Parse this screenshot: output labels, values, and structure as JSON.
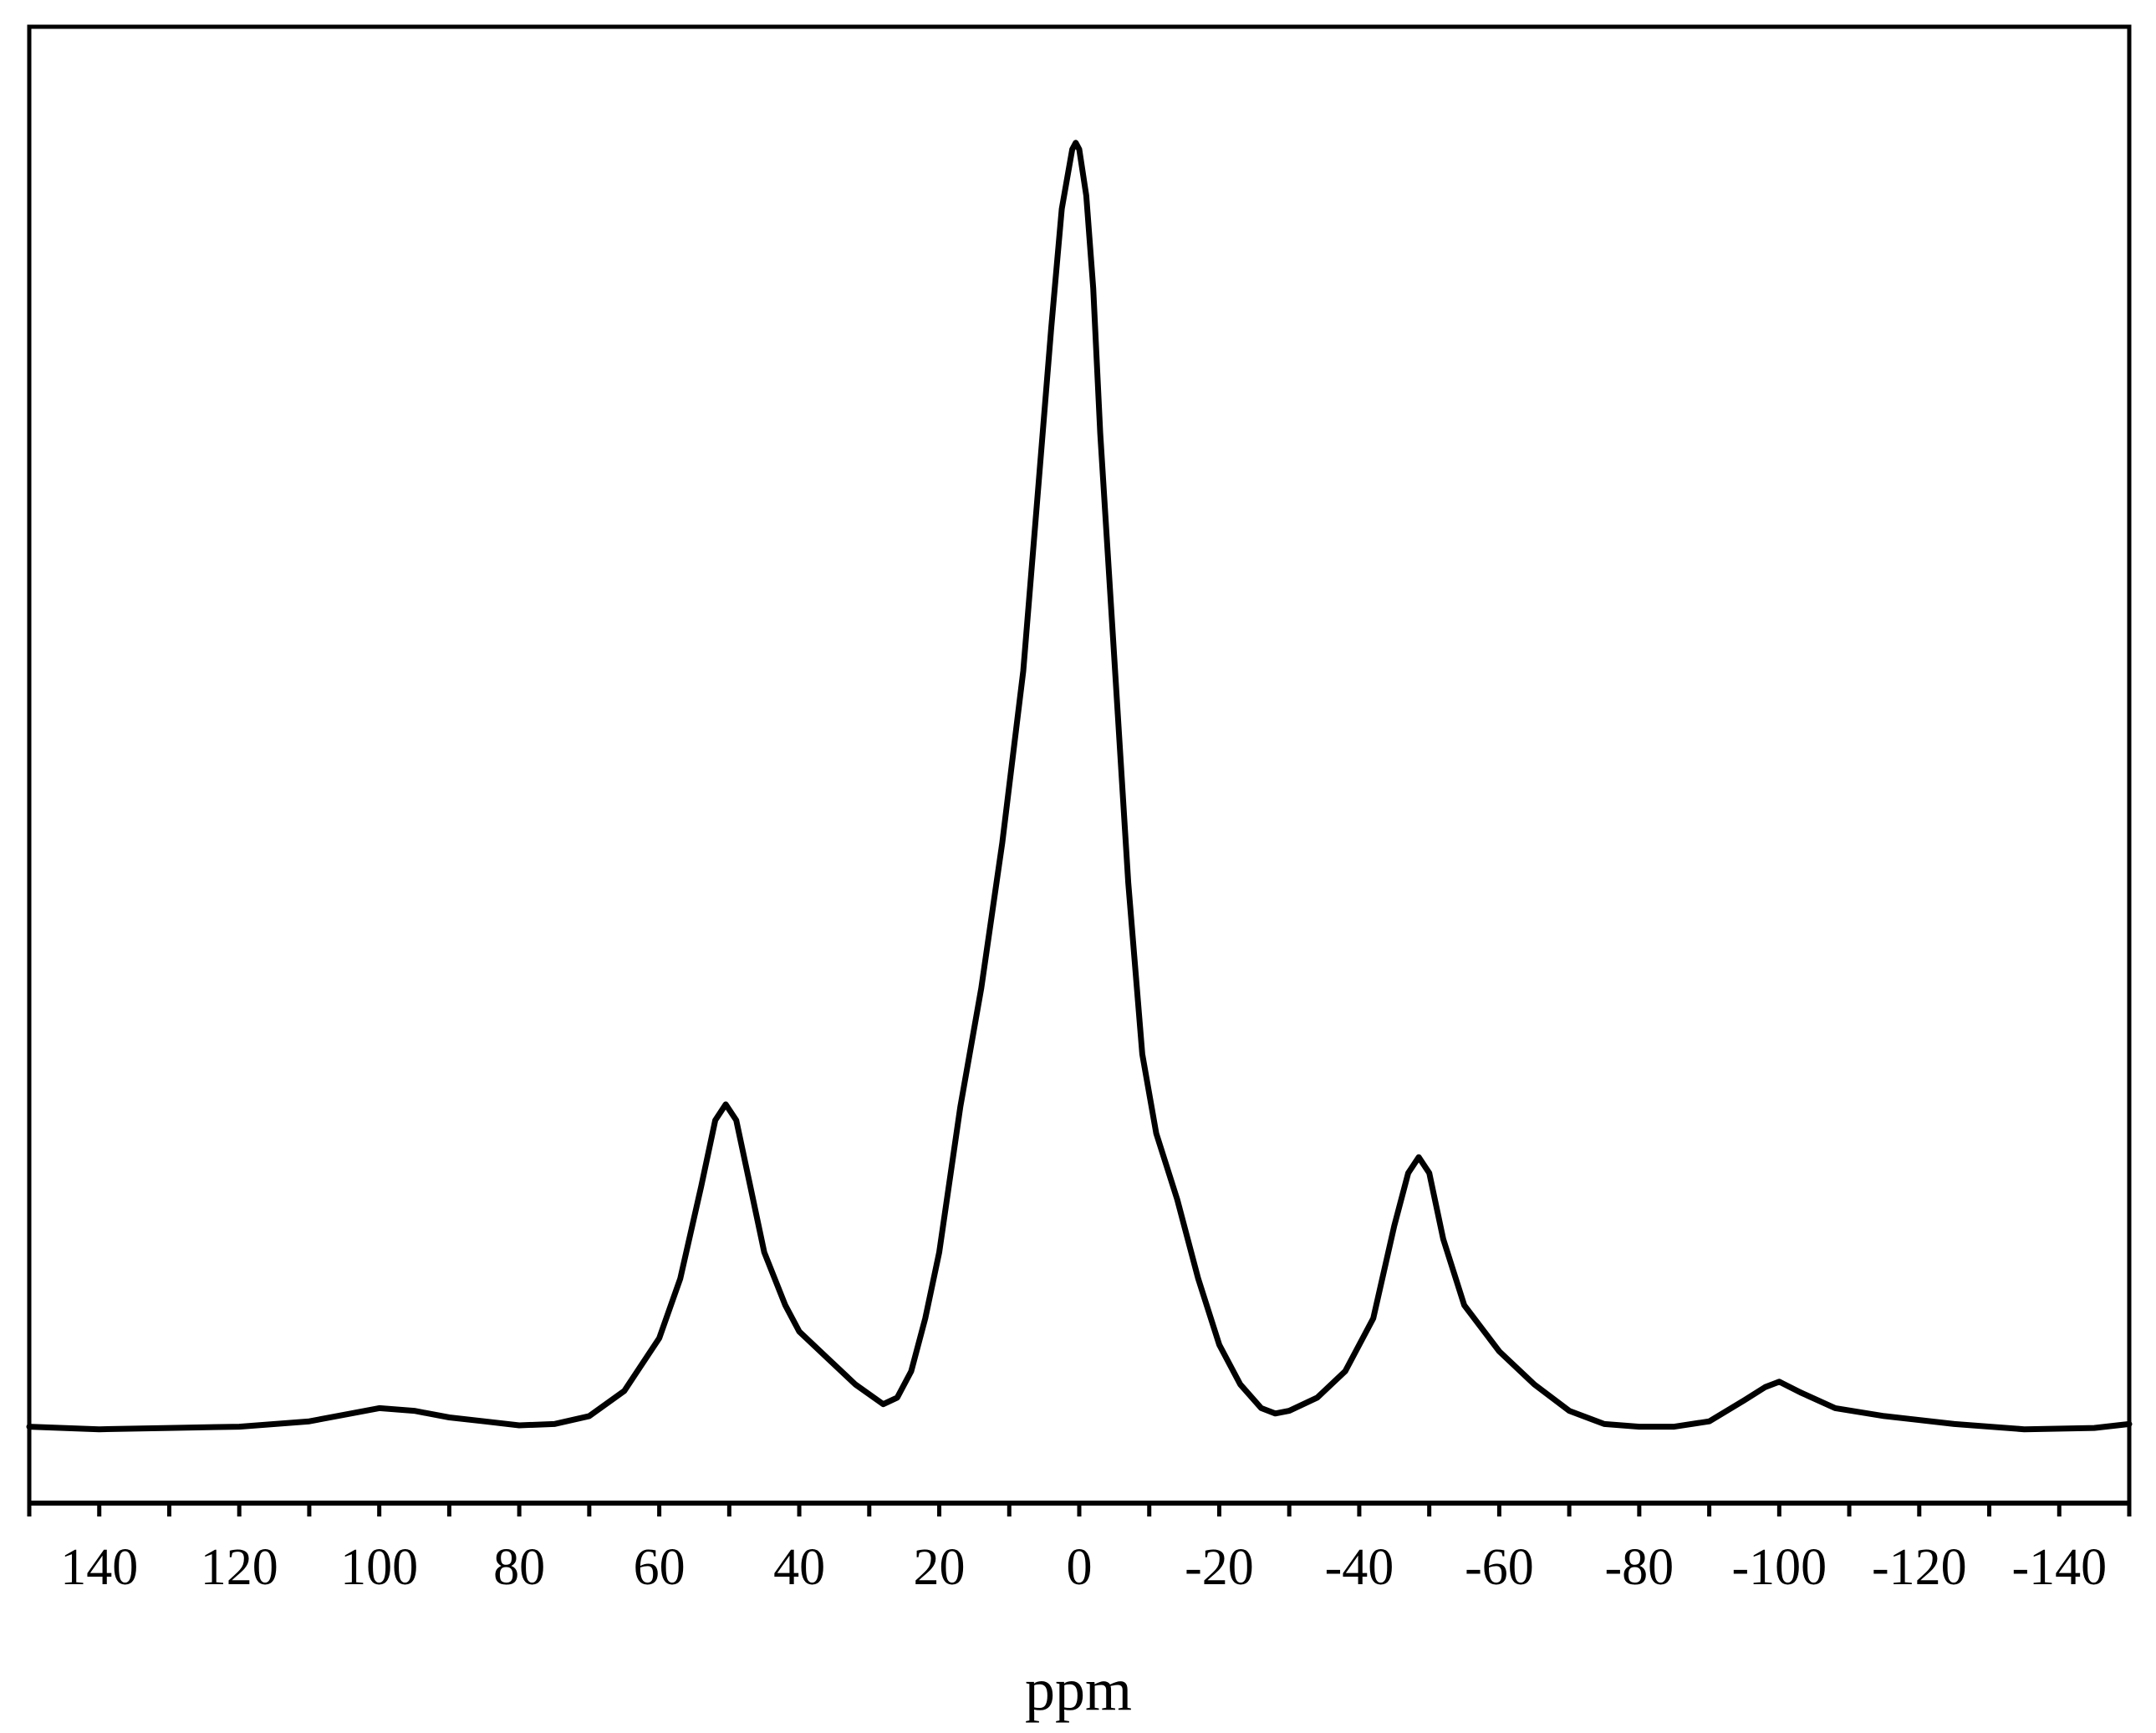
{
  "chart_data": {
    "type": "line",
    "title": "",
    "xlabel": "ppm",
    "ylabel": "",
    "xlim": [
      150,
      -150
    ],
    "x_reversed": true,
    "ylim": [
      0,
      1.0
    ],
    "grid": false,
    "legend": "none",
    "line_color": "#000000",
    "x_ticks_labeled": [
      140,
      120,
      100,
      80,
      60,
      40,
      20,
      0,
      -20,
      -40,
      -60,
      -80,
      -100,
      -120,
      -140
    ],
    "x_tick_labels": [
      "140",
      "120",
      "100",
      "80",
      "60",
      "40",
      "20",
      "0",
      "-20",
      "-40",
      "-60",
      "-80",
      "-100",
      "-120",
      "-140"
    ],
    "x_minor_tick_step": 10,
    "series": [
      {
        "x": [
          150,
          140,
          130,
          120,
          110,
          105,
          100,
          95,
          90,
          85,
          80,
          75,
          70,
          65,
          60,
          57,
          54,
          52,
          50.5,
          49,
          47,
          45,
          42,
          40,
          36,
          32,
          28,
          26,
          24,
          22,
          20,
          17,
          14,
          11,
          8,
          6,
          4,
          2.5,
          1,
          0.5,
          0,
          -1,
          -2,
          -3,
          -5,
          -7,
          -9,
          -11,
          -14,
          -17,
          -20,
          -23,
          -26,
          -28,
          -30,
          -34,
          -38,
          -42,
          -45,
          -47,
          -48.5,
          -50,
          -52,
          -55,
          -60,
          -65,
          -70,
          -75,
          -80,
          -85,
          -90,
          -95,
          -98,
          -100,
          -103,
          -108,
          -115,
          -125,
          -135,
          -145,
          -150
        ],
        "y": [
          0.018,
          0.016,
          0.017,
          0.018,
          0.022,
          0.027,
          0.032,
          0.03,
          0.025,
          0.022,
          0.019,
          0.02,
          0.026,
          0.045,
          0.085,
          0.13,
          0.2,
          0.25,
          0.262,
          0.25,
          0.2,
          0.15,
          0.11,
          0.09,
          0.07,
          0.05,
          0.035,
          0.04,
          0.06,
          0.1,
          0.15,
          0.26,
          0.35,
          0.46,
          0.59,
          0.72,
          0.85,
          0.94,
          0.985,
          0.99,
          0.985,
          0.95,
          0.88,
          0.77,
          0.6,
          0.43,
          0.3,
          0.24,
          0.19,
          0.13,
          0.08,
          0.05,
          0.032,
          0.028,
          0.03,
          0.04,
          0.06,
          0.1,
          0.17,
          0.21,
          0.222,
          0.21,
          0.16,
          0.11,
          0.075,
          0.05,
          0.03,
          0.02,
          0.018,
          0.018,
          0.022,
          0.038,
          0.048,
          0.052,
          0.044,
          0.032,
          0.026,
          0.02,
          0.016,
          0.017,
          0.02
        ]
      }
    ]
  }
}
